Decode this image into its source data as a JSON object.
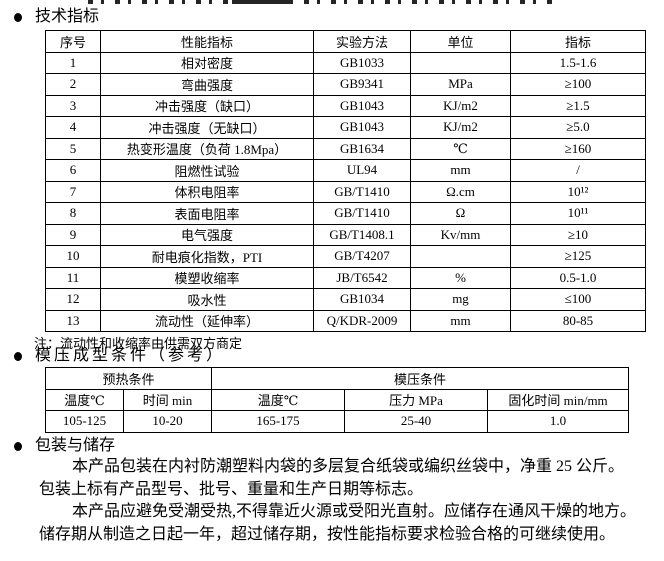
{
  "sections": {
    "tech": {
      "title": "技术指标"
    },
    "molding": {
      "title": "模压成型条件（参考）"
    },
    "packaging": {
      "title": "包装与储存"
    }
  },
  "tech_table": {
    "headers": [
      "序号",
      "性能指标",
      "实验方法",
      "单位",
      "指标"
    ],
    "rows": [
      [
        "1",
        "相对密度",
        "GB1033",
        "",
        "1.5-1.6"
      ],
      [
        "2",
        "弯曲强度",
        "GB9341",
        "MPa",
        "≥100"
      ],
      [
        "3",
        "冲击强度（缺口）",
        "GB1043",
        "KJ/m2",
        "≥1.5"
      ],
      [
        "4",
        "冲击强度（无缺口）",
        "GB1043",
        "KJ/m2",
        "≥5.0"
      ],
      [
        "5",
        "热变形温度（负荷 1.8Mpa）",
        "GB1634",
        "℃",
        "≥160"
      ],
      [
        "6",
        "阻燃性试验",
        "UL94",
        "mm",
        "/"
      ],
      [
        "7",
        "体积电阻率",
        "GB/T1410",
        "Ω.cm",
        "10¹²"
      ],
      [
        "8",
        "表面电阻率",
        "GB/T1410",
        "Ω",
        "10¹¹"
      ],
      [
        "9",
        "电气强度",
        "GB/T1408.1",
        "Kv/mm",
        "≥10"
      ],
      [
        "10",
        "耐电痕化指数，PTI",
        "GB/T4207",
        "",
        "≥125"
      ],
      [
        "11",
        "模塑收缩率",
        "JB/T6542",
        "%",
        "0.5-1.0"
      ],
      [
        "12",
        "吸水性",
        "GB1034",
        "mg",
        "≤100"
      ],
      [
        "13",
        "流动性（延伸率）",
        "Q/KDR-2009",
        "mm",
        "80-85"
      ]
    ],
    "note": "注：流动性和收缩率由供需双方商定"
  },
  "molding_table": {
    "group_headers": [
      "预热条件",
      "模压条件"
    ],
    "col_headers": [
      "温度℃",
      "时间 min",
      "温度℃",
      "压力 MPa",
      "固化时间 min/mm"
    ],
    "values": [
      "105-125",
      "10-20",
      "165-175",
      "25-40",
      "1.0"
    ]
  },
  "packaging": {
    "p1_line1": "本产品包装在内衬防潮塑料内袋的多层复合纸袋或编织丝袋中，净重 25 公斤。",
    "p1_line2": "包装上标有产品型号、批号、重量和生产日期等标志。",
    "p2_line1": "本产品应避免受潮受热,不得靠近火源或受阳光直射。应储存在通风干燥的地方。",
    "p2_line2": "储存期从制造之日起一年，超过储存期，按性能指标要求检验合格的可继续使用。"
  }
}
